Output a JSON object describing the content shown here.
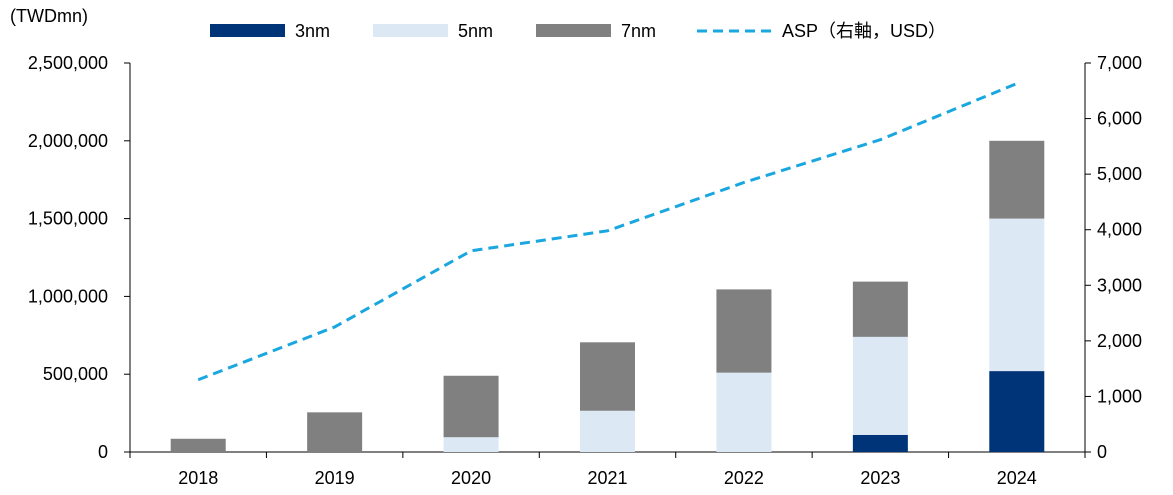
{
  "chart_data": {
    "type": "bar",
    "stacked": true,
    "left_axis_label": "(TWDmn)",
    "categories": [
      "2018",
      "2019",
      "2020",
      "2021",
      "2022",
      "2023",
      "2024"
    ],
    "series": [
      {
        "name": "3nm",
        "color": "#003478",
        "values": [
          0,
          0,
          0,
          0,
          0,
          110000,
          520000
        ]
      },
      {
        "name": "5nm",
        "color": "#dde8f5",
        "values": [
          0,
          0,
          95000,
          265000,
          510000,
          630000,
          980000
        ]
      },
      {
        "name": "7nm",
        "color": "#808080",
        "values": [
          85000,
          255000,
          395000,
          440000,
          535000,
          355000,
          500000
        ]
      }
    ],
    "line_series": {
      "name": "ASP（右軸，USD）",
      "color": "#1aa7e0",
      "axis": "right",
      "values": [
        1300,
        2250,
        3620,
        3980,
        4850,
        5620,
        6630
      ]
    },
    "y_left": {
      "min": 0,
      "max": 2500000,
      "ticks": [
        "0",
        "500,000",
        "1,000,000",
        "1,500,000",
        "2,000,000",
        "2,500,000"
      ]
    },
    "y_right": {
      "min": 0,
      "max": 7000,
      "ticks": [
        "0",
        "1,000",
        "2,000",
        "3,000",
        "4,000",
        "5,000",
        "6,000",
        "7,000"
      ]
    },
    "grid": false,
    "legend_position": "top"
  }
}
